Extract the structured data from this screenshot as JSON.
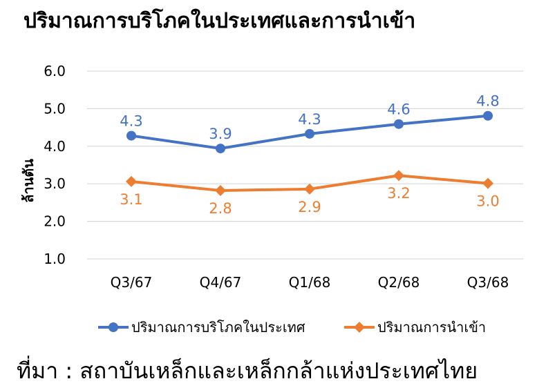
{
  "chart_data": {
    "type": "line",
    "title": "ปริมาณการบริโภคในประเทศและการนำเข้า",
    "ylabel": "ล้านตัน",
    "xlabel": "",
    "categories": [
      "Q3/67",
      "Q4/67",
      "Q1/68",
      "Q2/68",
      "Q3/68"
    ],
    "ylim": [
      1.0,
      6.0
    ],
    "yticks": [
      "1.0",
      "2.0",
      "3.0",
      "4.0",
      "5.0",
      "6.0"
    ],
    "grid": true,
    "legend_position": "bottom",
    "series": [
      {
        "name": "ปริมาณการบริโภคในประเทศ",
        "values": [
          4.3,
          3.9,
          4.3,
          4.6,
          4.8
        ],
        "plot_values": [
          4.28,
          3.94,
          4.33,
          4.59,
          4.81
        ],
        "labels": [
          "4.3",
          "3.9",
          "4.3",
          "4.6",
          "4.8"
        ],
        "color": "#4472C4",
        "marker": "circle",
        "label_position": "above"
      },
      {
        "name": "ปริมาณการนำเข้า",
        "values": [
          3.1,
          2.8,
          2.9,
          3.2,
          3.0
        ],
        "plot_values": [
          3.06,
          2.82,
          2.86,
          3.22,
          3.01
        ],
        "labels": [
          "3.1",
          "2.8",
          "2.9",
          "3.2",
          "3.0"
        ],
        "color": "#ED7D31",
        "marker": "diamond",
        "label_position": "below"
      }
    ]
  },
  "source_note": "ที่มา : สถาบันเหล็กและเหล็กกล้าแห่งประเทศไทย"
}
